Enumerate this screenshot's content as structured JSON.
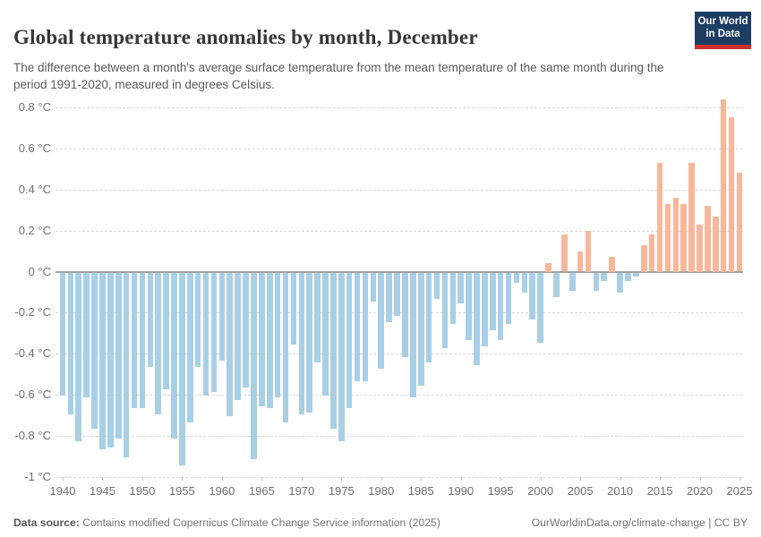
{
  "header": {
    "title": "Global temperature anomalies by month, December",
    "subtitle": "The difference between a month's average surface temperature from the mean temperature of the same month during the period 1991-2020, measured in degrees Celsius.",
    "logo": {
      "line1": "Our World",
      "line2": "in Data"
    }
  },
  "footer": {
    "source_label": "Data source:",
    "source_text": " Contains modified Copernicus Climate Change Service information (2025)",
    "link_text": "OurWorldinData.org/climate-change | CC BY"
  },
  "colors": {
    "positive_bar": "#f6b79b",
    "negative_bar": "#a8cfe5",
    "zero_line": "#a3a3a3",
    "gridline": "#d8d8d8",
    "axis_text": "#6f6f6f",
    "logo_bg": "#1d3d63",
    "logo_red": "#cc3029"
  },
  "chart_data": {
    "type": "bar",
    "title": "Global temperature anomalies by month, December",
    "unit": "°C",
    "xlabel": "",
    "ylabel": "",
    "ylim": [
      -1,
      0.865
    ],
    "grid": true,
    "legend": "none",
    "x": [
      1940,
      1941,
      1942,
      1943,
      1944,
      1945,
      1946,
      1947,
      1948,
      1949,
      1950,
      1951,
      1952,
      1953,
      1954,
      1955,
      1956,
      1957,
      1958,
      1959,
      1960,
      1961,
      1962,
      1963,
      1964,
      1965,
      1966,
      1967,
      1968,
      1969,
      1970,
      1971,
      1972,
      1973,
      1974,
      1975,
      1976,
      1977,
      1978,
      1979,
      1980,
      1981,
      1982,
      1983,
      1984,
      1985,
      1986,
      1987,
      1988,
      1989,
      1990,
      1991,
      1992,
      1993,
      1994,
      1995,
      1996,
      1997,
      1998,
      1999,
      2000,
      2001,
      2002,
      2003,
      2004,
      2005,
      2006,
      2007,
      2008,
      2009,
      2010,
      2011,
      2012,
      2013,
      2014,
      2015,
      2016,
      2017,
      2018,
      2019,
      2020,
      2021,
      2022,
      2023,
      2024,
      2025
    ],
    "values": [
      -0.6,
      -0.69,
      -0.82,
      -0.61,
      -0.76,
      -0.86,
      -0.85,
      -0.81,
      -0.9,
      -0.66,
      -0.66,
      -0.46,
      -0.69,
      -0.57,
      -0.81,
      -0.94,
      -0.73,
      -0.46,
      -0.6,
      -0.58,
      -0.43,
      -0.7,
      -0.62,
      -0.56,
      -0.91,
      -0.65,
      -0.66,
      -0.61,
      -0.73,
      -0.35,
      -0.69,
      -0.68,
      -0.44,
      -0.6,
      -0.76,
      -0.82,
      -0.66,
      -0.53,
      -0.53,
      -0.14,
      -0.47,
      -0.24,
      -0.21,
      -0.41,
      -0.61,
      -0.55,
      -0.44,
      -0.13,
      -0.37,
      -0.25,
      -0.15,
      -0.33,
      -0.45,
      -0.36,
      -0.28,
      -0.33,
      -0.25,
      -0.05,
      -0.1,
      -0.23,
      -0.34,
      0.04,
      -0.12,
      0.18,
      -0.09,
      0.1,
      0.2,
      -0.09,
      -0.04,
      0.07,
      -0.1,
      -0.04,
      -0.02,
      0.13,
      0.18,
      0.53,
      0.33,
      0.36,
      0.33,
      0.53,
      0.23,
      0.32,
      0.27,
      0.84,
      0.75,
      0.48
    ],
    "y_ticks": [
      {
        "value": 0.8,
        "label": "0.8 °C"
      },
      {
        "value": 0.6,
        "label": "0.6 °C"
      },
      {
        "value": 0.4,
        "label": "0.4 °C"
      },
      {
        "value": 0.2,
        "label": "0.2 °C"
      },
      {
        "value": 0,
        "label": "0 °C"
      },
      {
        "value": -0.2,
        "label": "-0.2 °C"
      },
      {
        "value": -0.4,
        "label": "-0.4 °C"
      },
      {
        "value": -0.6,
        "label": "-0.6 °C"
      },
      {
        "value": -0.8,
        "label": "-0.8 °C"
      },
      {
        "value": -1,
        "label": "-1 °C"
      }
    ],
    "x_ticks": [
      1940,
      1945,
      1950,
      1955,
      1960,
      1965,
      1970,
      1975,
      1980,
      1985,
      1990,
      1995,
      2000,
      2005,
      2010,
      2015,
      2020,
      2025
    ]
  }
}
